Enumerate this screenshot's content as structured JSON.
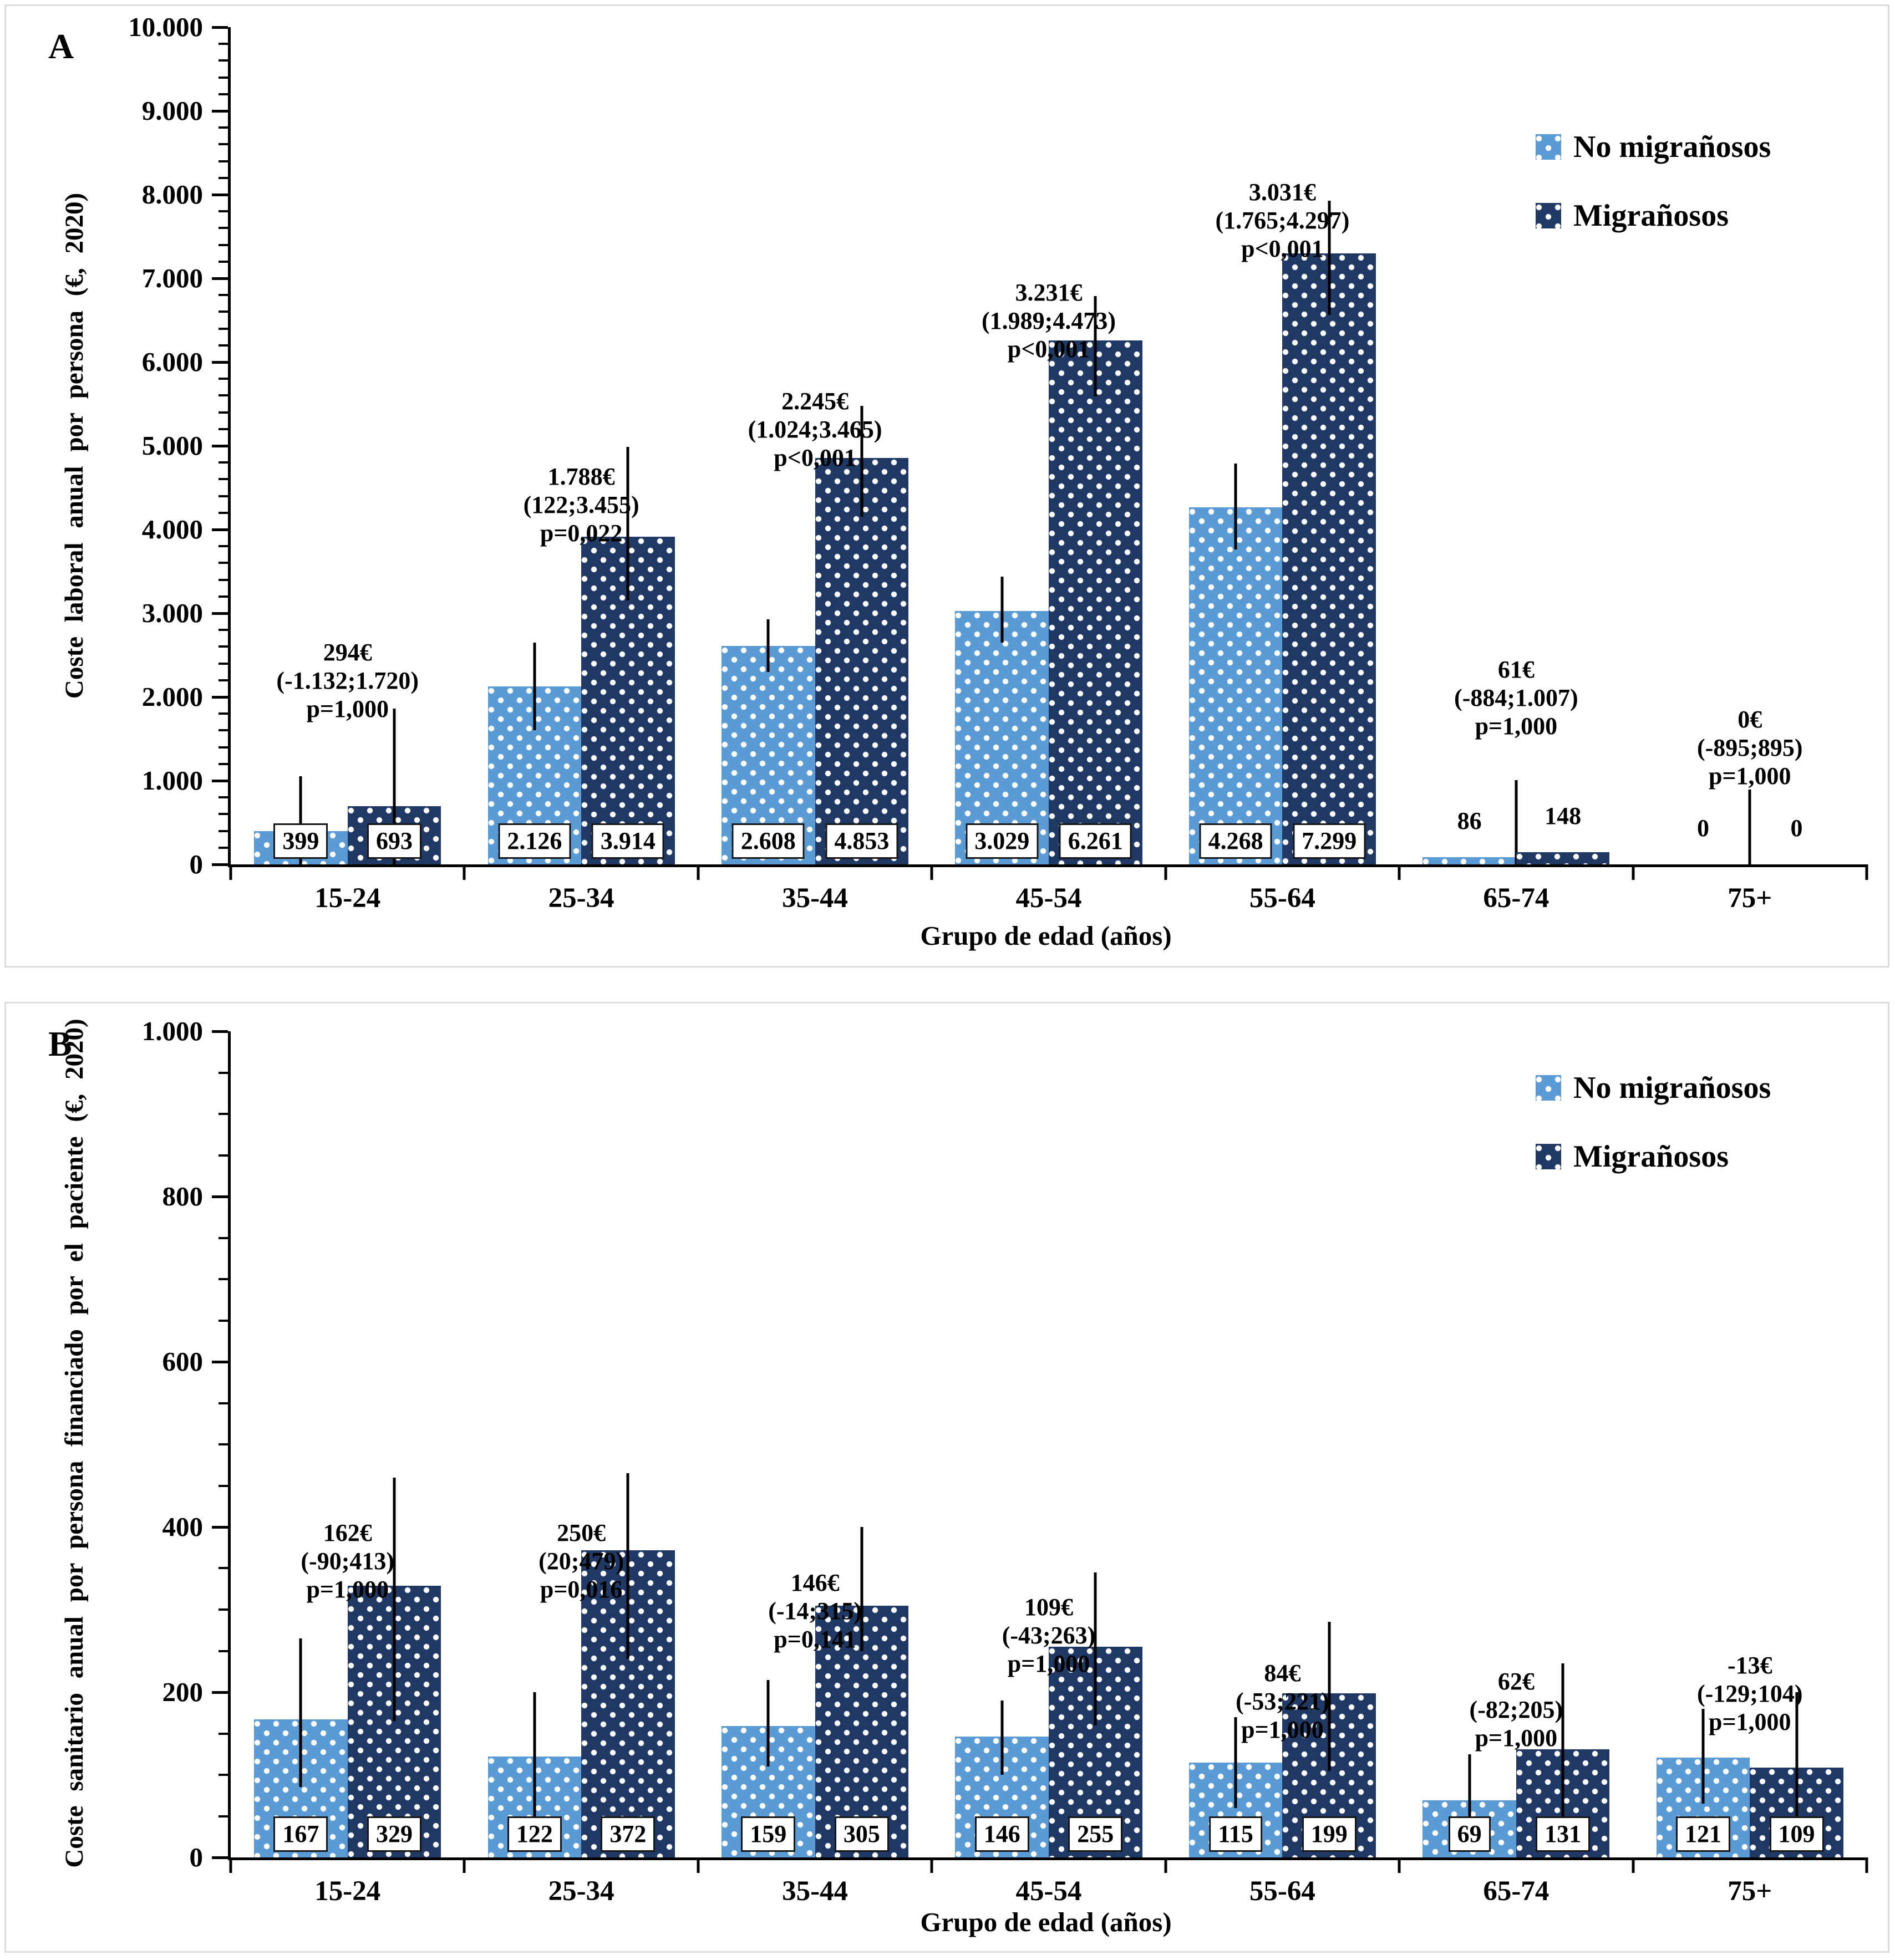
{
  "page": {
    "background": "#ffffff",
    "panel_border": "#dcdcdc"
  },
  "colors": {
    "no_migranosos": "#5B9BD5",
    "migranosos": "#1F3864",
    "error_bar": "#000000",
    "text": "#000000"
  },
  "legend": {
    "items": [
      {
        "label": "No migrañosos",
        "color_key": "no_migranosos"
      },
      {
        "label": "Migrañosos",
        "color_key": "migranosos"
      }
    ]
  },
  "chart_data": [
    {
      "type": "bar",
      "panel_label": "A",
      "ylabel": "Coste laboral anual por persona (€, 2020)",
      "xlabel": "Grupo de edad (años)",
      "ylim": [
        0,
        10000
      ],
      "ytick_labels": [
        "10.000",
        "9.000",
        "8.000",
        "7.000",
        "6.000",
        "5.000",
        "4.000",
        "3.000",
        "2.000",
        "1.000",
        "0"
      ],
      "minor_ticks_per_interval": 4,
      "grid": false,
      "legend_position": "top-right",
      "categories": [
        "15-24",
        "25-34",
        "35-44",
        "45-54",
        "55-64",
        "65-74",
        "75+"
      ],
      "series": [
        {
          "name": "No migrañosos",
          "values": [
            399,
            2126,
            2608,
            3029,
            4268,
            86,
            0
          ],
          "labels": [
            "399",
            "2.126",
            "2.608",
            "3.029",
            "4.268",
            "86",
            "0"
          ],
          "boxed": [
            true,
            true,
            true,
            true,
            true,
            false,
            false
          ],
          "error_bars": [
            {
              "lo": 0,
              "hi": 1050
            },
            {
              "lo": 1600,
              "hi": 2650
            },
            {
              "lo": 2300,
              "hi": 2930
            },
            {
              "lo": 2650,
              "hi": 3440
            },
            {
              "lo": 3760,
              "hi": 4790
            },
            {
              "lo": 0,
              "hi": 1007,
              "pos": 100
            },
            {
              "lo": 0,
              "hi": 895,
              "pos": 100
            }
          ]
        },
        {
          "name": "Migrañosos",
          "values": [
            693,
            3914,
            4853,
            6261,
            7299,
            148,
            0
          ],
          "labels": [
            "693",
            "3.914",
            "4.853",
            "6.261",
            "7.299",
            "148",
            "0"
          ],
          "boxed": [
            true,
            true,
            true,
            true,
            true,
            false,
            false
          ],
          "error_bars": [
            {
              "lo": 0,
              "hi": 1860
            },
            {
              "lo": 3150,
              "hi": 4990
            },
            {
              "lo": 4150,
              "hi": 5480
            },
            {
              "lo": 5590,
              "hi": 6790
            },
            {
              "lo": 6560,
              "hi": 7930
            },
            null,
            null
          ]
        }
      ],
      "annotations": [
        {
          "value": "294€",
          "ci": "(-1.132;1.720)",
          "p": "p=1,000",
          "top_pct": 73
        },
        {
          "value": "1.788€",
          "ci": "(122;3.455)",
          "p": "p=0,022",
          "top_pct": 52
        },
        {
          "value": "2.245€",
          "ci": "(1.024;3.465)",
          "p": "p<0,001",
          "top_pct": 43
        },
        {
          "value": "3.231€",
          "ci": "(1.989;4.473)",
          "p": "p<0,001",
          "top_pct": 30
        },
        {
          "value": "3.031€",
          "ci": "(1.765;4.297)",
          "p": "p<0,001",
          "top_pct": 18
        },
        {
          "value": "61€",
          "ci": "(-884;1.007)",
          "p": "p=1,000",
          "top_pct": 75
        },
        {
          "value": "0€",
          "ci": "(-895;895)",
          "p": "p=1,000",
          "top_pct": 81
        }
      ]
    },
    {
      "type": "bar",
      "panel_label": "B",
      "ylabel": "Coste sanitario anual por persona financiado por el paciente (€, 2020)",
      "xlabel": "Grupo de edad (años)",
      "ylim": [
        0,
        1000
      ],
      "ytick_labels": [
        "1.000",
        "800",
        "600",
        "400",
        "200",
        "0"
      ],
      "minor_ticks_per_interval": 3,
      "grid": false,
      "legend_position": "top-right",
      "categories": [
        "15-24",
        "25-34",
        "35-44",
        "45-54",
        "55-64",
        "65-74",
        "75+"
      ],
      "series": [
        {
          "name": "No migrañosos",
          "values": [
            167,
            122,
            159,
            146,
            115,
            69,
            121
          ],
          "labels": [
            "167",
            "122",
            "159",
            "146",
            "115",
            "69",
            "121"
          ],
          "boxed": [
            true,
            true,
            true,
            true,
            true,
            true,
            true
          ],
          "error_bars": [
            {
              "lo": 85,
              "hi": 265
            },
            {
              "lo": 45,
              "hi": 200
            },
            {
              "lo": 110,
              "hi": 215
            },
            {
              "lo": 100,
              "hi": 190
            },
            {
              "lo": 60,
              "hi": 170
            },
            {
              "lo": 10,
              "hi": 125
            },
            {
              "lo": 65,
              "hi": 180
            }
          ]
        },
        {
          "name": "Migrañosos",
          "values": [
            329,
            372,
            305,
            255,
            199,
            131,
            109
          ],
          "labels": [
            "329",
            "372",
            "305",
            "255",
            "199",
            "131",
            "109"
          ],
          "boxed": [
            true,
            true,
            true,
            true,
            true,
            true,
            true
          ],
          "error_bars": [
            {
              "lo": 165,
              "hi": 460
            },
            {
              "lo": 240,
              "hi": 465
            },
            {
              "lo": 250,
              "hi": 400
            },
            {
              "lo": 160,
              "hi": 345
            },
            {
              "lo": 105,
              "hi": 285
            },
            {
              "lo": 30,
              "hi": 235
            },
            {
              "lo": 20,
              "hi": 200
            }
          ]
        }
      ],
      "annotations": [
        {
          "value": "162€",
          "ci": "(-90;413)",
          "p": "p=1,000",
          "top_pct": 59
        },
        {
          "value": "250€",
          "ci": "(20;479)",
          "p": "p=0,016",
          "top_pct": 59
        },
        {
          "value": "146€",
          "ci": "(-14;315)",
          "p": "p=0,141",
          "top_pct": 65
        },
        {
          "value": "109€",
          "ci": "(-43;263)",
          "p": "p=1,000",
          "top_pct": 68
        },
        {
          "value": "84€",
          "ci": "(-53;221)",
          "p": "p=1,000",
          "top_pct": 76
        },
        {
          "value": "62€",
          "ci": "(-82;205)",
          "p": "p=1,000",
          "top_pct": 77
        },
        {
          "value": "-13€",
          "ci": "(-129;104)",
          "p": "p=1,000",
          "top_pct": 75
        }
      ]
    }
  ]
}
